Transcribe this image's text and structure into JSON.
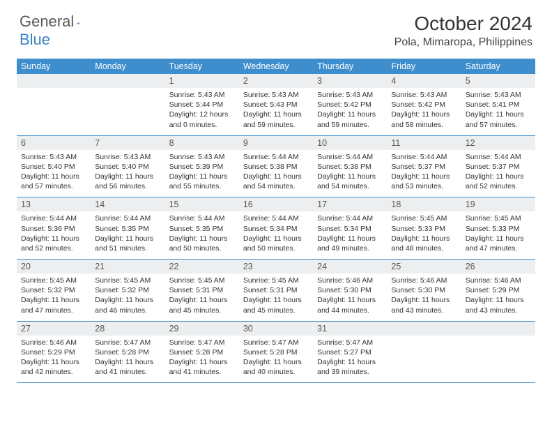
{
  "logo": {
    "part1": "General",
    "part2": "Blue"
  },
  "title": "October 2024",
  "location": "Pola, Mimaropa, Philippines",
  "colors": {
    "header_bar": "#3e8dcc",
    "daynum_bg": "#eceeef",
    "border": "#3e8dcc",
    "text": "#333333",
    "logo_gray": "#5a5a5a",
    "logo_blue": "#3b82c4"
  },
  "day_names": [
    "Sunday",
    "Monday",
    "Tuesday",
    "Wednesday",
    "Thursday",
    "Friday",
    "Saturday"
  ],
  "weeks": [
    {
      "nums": [
        "",
        "",
        "1",
        "2",
        "3",
        "4",
        "5"
      ],
      "cells": [
        {
          "sunrise": "",
          "sunset": "",
          "daylight": ""
        },
        {
          "sunrise": "",
          "sunset": "",
          "daylight": ""
        },
        {
          "sunrise": "Sunrise: 5:43 AM",
          "sunset": "Sunset: 5:44 PM",
          "daylight": "Daylight: 12 hours and 0 minutes."
        },
        {
          "sunrise": "Sunrise: 5:43 AM",
          "sunset": "Sunset: 5:43 PM",
          "daylight": "Daylight: 11 hours and 59 minutes."
        },
        {
          "sunrise": "Sunrise: 5:43 AM",
          "sunset": "Sunset: 5:42 PM",
          "daylight": "Daylight: 11 hours and 59 minutes."
        },
        {
          "sunrise": "Sunrise: 5:43 AM",
          "sunset": "Sunset: 5:42 PM",
          "daylight": "Daylight: 11 hours and 58 minutes."
        },
        {
          "sunrise": "Sunrise: 5:43 AM",
          "sunset": "Sunset: 5:41 PM",
          "daylight": "Daylight: 11 hours and 57 minutes."
        }
      ]
    },
    {
      "nums": [
        "6",
        "7",
        "8",
        "9",
        "10",
        "11",
        "12"
      ],
      "cells": [
        {
          "sunrise": "Sunrise: 5:43 AM",
          "sunset": "Sunset: 5:40 PM",
          "daylight": "Daylight: 11 hours and 57 minutes."
        },
        {
          "sunrise": "Sunrise: 5:43 AM",
          "sunset": "Sunset: 5:40 PM",
          "daylight": "Daylight: 11 hours and 56 minutes."
        },
        {
          "sunrise": "Sunrise: 5:43 AM",
          "sunset": "Sunset: 5:39 PM",
          "daylight": "Daylight: 11 hours and 55 minutes."
        },
        {
          "sunrise": "Sunrise: 5:44 AM",
          "sunset": "Sunset: 5:38 PM",
          "daylight": "Daylight: 11 hours and 54 minutes."
        },
        {
          "sunrise": "Sunrise: 5:44 AM",
          "sunset": "Sunset: 5:38 PM",
          "daylight": "Daylight: 11 hours and 54 minutes."
        },
        {
          "sunrise": "Sunrise: 5:44 AM",
          "sunset": "Sunset: 5:37 PM",
          "daylight": "Daylight: 11 hours and 53 minutes."
        },
        {
          "sunrise": "Sunrise: 5:44 AM",
          "sunset": "Sunset: 5:37 PM",
          "daylight": "Daylight: 11 hours and 52 minutes."
        }
      ]
    },
    {
      "nums": [
        "13",
        "14",
        "15",
        "16",
        "17",
        "18",
        "19"
      ],
      "cells": [
        {
          "sunrise": "Sunrise: 5:44 AM",
          "sunset": "Sunset: 5:36 PM",
          "daylight": "Daylight: 11 hours and 52 minutes."
        },
        {
          "sunrise": "Sunrise: 5:44 AM",
          "sunset": "Sunset: 5:35 PM",
          "daylight": "Daylight: 11 hours and 51 minutes."
        },
        {
          "sunrise": "Sunrise: 5:44 AM",
          "sunset": "Sunset: 5:35 PM",
          "daylight": "Daylight: 11 hours and 50 minutes."
        },
        {
          "sunrise": "Sunrise: 5:44 AM",
          "sunset": "Sunset: 5:34 PM",
          "daylight": "Daylight: 11 hours and 50 minutes."
        },
        {
          "sunrise": "Sunrise: 5:44 AM",
          "sunset": "Sunset: 5:34 PM",
          "daylight": "Daylight: 11 hours and 49 minutes."
        },
        {
          "sunrise": "Sunrise: 5:45 AM",
          "sunset": "Sunset: 5:33 PM",
          "daylight": "Daylight: 11 hours and 48 minutes."
        },
        {
          "sunrise": "Sunrise: 5:45 AM",
          "sunset": "Sunset: 5:33 PM",
          "daylight": "Daylight: 11 hours and 47 minutes."
        }
      ]
    },
    {
      "nums": [
        "20",
        "21",
        "22",
        "23",
        "24",
        "25",
        "26"
      ],
      "cells": [
        {
          "sunrise": "Sunrise: 5:45 AM",
          "sunset": "Sunset: 5:32 PM",
          "daylight": "Daylight: 11 hours and 47 minutes."
        },
        {
          "sunrise": "Sunrise: 5:45 AM",
          "sunset": "Sunset: 5:32 PM",
          "daylight": "Daylight: 11 hours and 46 minutes."
        },
        {
          "sunrise": "Sunrise: 5:45 AM",
          "sunset": "Sunset: 5:31 PM",
          "daylight": "Daylight: 11 hours and 45 minutes."
        },
        {
          "sunrise": "Sunrise: 5:45 AM",
          "sunset": "Sunset: 5:31 PM",
          "daylight": "Daylight: 11 hours and 45 minutes."
        },
        {
          "sunrise": "Sunrise: 5:46 AM",
          "sunset": "Sunset: 5:30 PM",
          "daylight": "Daylight: 11 hours and 44 minutes."
        },
        {
          "sunrise": "Sunrise: 5:46 AM",
          "sunset": "Sunset: 5:30 PM",
          "daylight": "Daylight: 11 hours and 43 minutes."
        },
        {
          "sunrise": "Sunrise: 5:46 AM",
          "sunset": "Sunset: 5:29 PM",
          "daylight": "Daylight: 11 hours and 43 minutes."
        }
      ]
    },
    {
      "nums": [
        "27",
        "28",
        "29",
        "30",
        "31",
        "",
        ""
      ],
      "cells": [
        {
          "sunrise": "Sunrise: 5:46 AM",
          "sunset": "Sunset: 5:29 PM",
          "daylight": "Daylight: 11 hours and 42 minutes."
        },
        {
          "sunrise": "Sunrise: 5:47 AM",
          "sunset": "Sunset: 5:28 PM",
          "daylight": "Daylight: 11 hours and 41 minutes."
        },
        {
          "sunrise": "Sunrise: 5:47 AM",
          "sunset": "Sunset: 5:28 PM",
          "daylight": "Daylight: 11 hours and 41 minutes."
        },
        {
          "sunrise": "Sunrise: 5:47 AM",
          "sunset": "Sunset: 5:28 PM",
          "daylight": "Daylight: 11 hours and 40 minutes."
        },
        {
          "sunrise": "Sunrise: 5:47 AM",
          "sunset": "Sunset: 5:27 PM",
          "daylight": "Daylight: 11 hours and 39 minutes."
        },
        {
          "sunrise": "",
          "sunset": "",
          "daylight": ""
        },
        {
          "sunrise": "",
          "sunset": "",
          "daylight": ""
        }
      ]
    }
  ]
}
